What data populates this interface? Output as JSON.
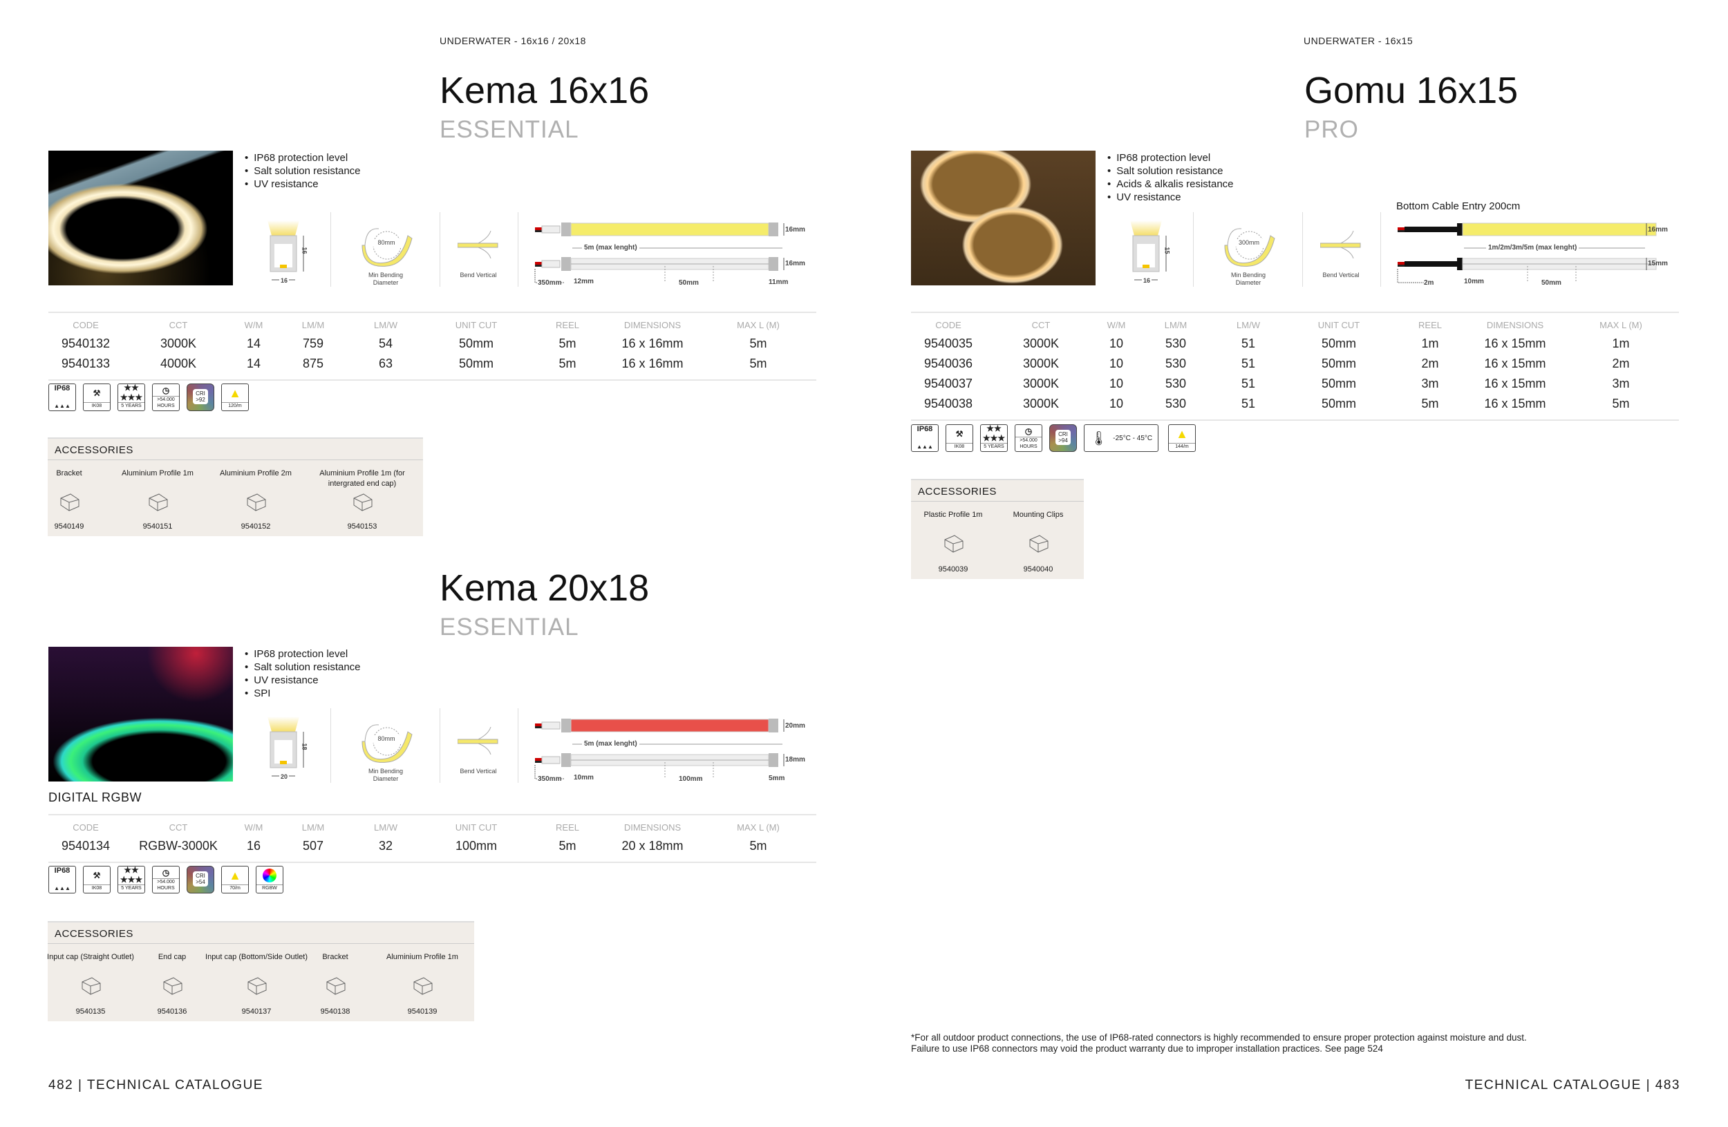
{
  "left_page": {
    "category": "UNDERWATER - 16x16 / 20x18",
    "footer": "482 | TECHNICAL CATALOGUE"
  },
  "right_page": {
    "category": "UNDERWATER - 16x15",
    "footer": "TECHNICAL CATALOGUE | 483",
    "footnote": [
      "*For all outdoor product connections, the use of IP68-rated connectors is highly recommended to ensure proper protection against moisture and dust.",
      "Failure to use IP68 connectors may void the product warranty due to improper installation practices. See page 524"
    ]
  },
  "table_headers": [
    "CODE",
    "CCT",
    "W/M",
    "LM/M",
    "LM/W",
    "UNIT CUT",
    "REEL",
    "DIMENSIONS",
    "MAX L (M)"
  ],
  "accessories_label": "ACCESSORIES",
  "diagram_labels": {
    "bending": "Min Bending Diameter",
    "bend": "Bend Vertical"
  },
  "products": [
    {
      "name": "Kema 16x16",
      "tier": "ESSENTIAL",
      "photo": "warm-white-neon-coil",
      "features": [
        "IP68 protection level",
        "Salt solution resistance",
        "UV resistance"
      ],
      "profile": {
        "width": "16",
        "height": "16"
      },
      "bend_diameter": "80mm",
      "strip": {
        "color": "#f5ec6a",
        "top_height": "16mm",
        "length": "5m (max lenght)",
        "bottom_height": "16mm",
        "cable": "350mm",
        "start": "12mm",
        "cut": "50mm",
        "end": "11mm"
      },
      "rows": [
        [
          "9540132",
          "3000K",
          "14",
          "759",
          "54",
          "50mm",
          "5m",
          "16 x 16mm",
          "5m"
        ],
        [
          "9540133",
          "4000K",
          "14",
          "875",
          "63",
          "50mm",
          "5m",
          "16 x 16mm",
          "5m"
        ]
      ],
      "certs": [
        {
          "icon": "ip68-icon",
          "label": "IP68"
        },
        {
          "icon": "hammer-icon",
          "label": "IK08"
        },
        {
          "icon": "stars-icon",
          "label": "5 YEARS"
        },
        {
          "icon": "clock-icon",
          "label": ">54.000 HOURS"
        },
        {
          "icon": "cri-icon",
          "label": "CRI >92"
        },
        {
          "icon": "led-icon",
          "label": "120/m"
        }
      ],
      "accessories": [
        {
          "name": "Bracket",
          "code": "9540149"
        },
        {
          "name": "Aluminium Profile 1m",
          "code": "9540151"
        },
        {
          "name": "Aluminium Profile 2m",
          "code": "9540152"
        },
        {
          "name": "Aluminium Profile 1m (for intergrated end cap)",
          "code": "9540153"
        }
      ]
    },
    {
      "name": "Kema 20x18",
      "tier": "ESSENTIAL",
      "photo": "rgb-neon-coil",
      "subtitle": "DIGITAL RGBW",
      "features": [
        "IP68 protection level",
        "Salt solution resistance",
        "UV resistance",
        "SPI"
      ],
      "profile": {
        "width": "20",
        "height": "18"
      },
      "bend_diameter": "80mm",
      "strip": {
        "color": "#e8504a",
        "top_height": "20mm",
        "length": "5m (max lenght)",
        "bottom_height": "18mm",
        "cable": "350mm",
        "start": "10mm",
        "cut": "100mm",
        "end": "5mm"
      },
      "rows": [
        [
          "9540134",
          "RGBW-3000K",
          "16",
          "507",
          "32",
          "100mm",
          "5m",
          "20 x 18mm",
          "5m"
        ]
      ],
      "certs": [
        {
          "icon": "ip68-icon",
          "label": "IP68"
        },
        {
          "icon": "hammer-icon",
          "label": "IK08"
        },
        {
          "icon": "stars-icon",
          "label": "5 YEARS"
        },
        {
          "icon": "clock-icon",
          "label": ">54.000 HOURS"
        },
        {
          "icon": "cri-icon",
          "label": "CRI >54"
        },
        {
          "icon": "led-icon",
          "label": "70/m"
        },
        {
          "icon": "rgbw-icon",
          "label": "RGBW"
        }
      ],
      "accessories": [
        {
          "name": "Input cap (Straight Outlet)",
          "code": "9540135"
        },
        {
          "name": "End cap",
          "code": "9540136"
        },
        {
          "name": "Input cap (Bottom/Side Outlet)",
          "code": "9540137"
        },
        {
          "name": "Bracket",
          "code": "9540138"
        },
        {
          "name": "Aluminium Profile 1m",
          "code": "9540139"
        }
      ]
    },
    {
      "name": "Gomu 16x15",
      "tier": "PRO",
      "photo": "amber-neon-coil",
      "features": [
        "IP68 protection level",
        "Salt solution resistance",
        "Acids & alkalis resistance",
        "UV resistance"
      ],
      "cable_note": "Bottom Cable Entry 200cm",
      "profile": {
        "width": "16",
        "height": "15"
      },
      "bend_diameter": "300mm",
      "strip": {
        "color": "#f5ec6a",
        "top_height": "16mm",
        "length": "1m/2m/3m/5m (max lenght)",
        "bottom_height": "15mm",
        "cable": "2m",
        "start": "10mm",
        "cut": "50mm",
        "end": ""
      },
      "rows": [
        [
          "9540035",
          "3000K",
          "10",
          "530",
          "51",
          "50mm",
          "1m",
          "16 x 15mm",
          "1m"
        ],
        [
          "9540036",
          "3000K",
          "10",
          "530",
          "51",
          "50mm",
          "2m",
          "16 x 15mm",
          "2m"
        ],
        [
          "9540037",
          "3000K",
          "10",
          "530",
          "51",
          "50mm",
          "3m",
          "16 x 15mm",
          "3m"
        ],
        [
          "9540038",
          "3000K",
          "10",
          "530",
          "51",
          "50mm",
          "5m",
          "16 x 15mm",
          "5m"
        ]
      ],
      "certs": [
        {
          "icon": "ip68-icon",
          "label": "IP68"
        },
        {
          "icon": "hammer-icon",
          "label": "IK08"
        },
        {
          "icon": "stars-icon",
          "label": "5 YEARS"
        },
        {
          "icon": "clock-icon",
          "label": ">54.000 HOURS"
        },
        {
          "icon": "cri-icon",
          "label": "CRI >94"
        },
        {
          "icon": "thermometer-icon",
          "label": "-25°C - 45°C"
        },
        {
          "icon": "led-icon",
          "label": "144/m"
        }
      ],
      "accessories": [
        {
          "name": "Plastic Profile 1m",
          "code": "9540039"
        },
        {
          "name": "Mounting Clips",
          "code": "9540040"
        }
      ]
    }
  ]
}
